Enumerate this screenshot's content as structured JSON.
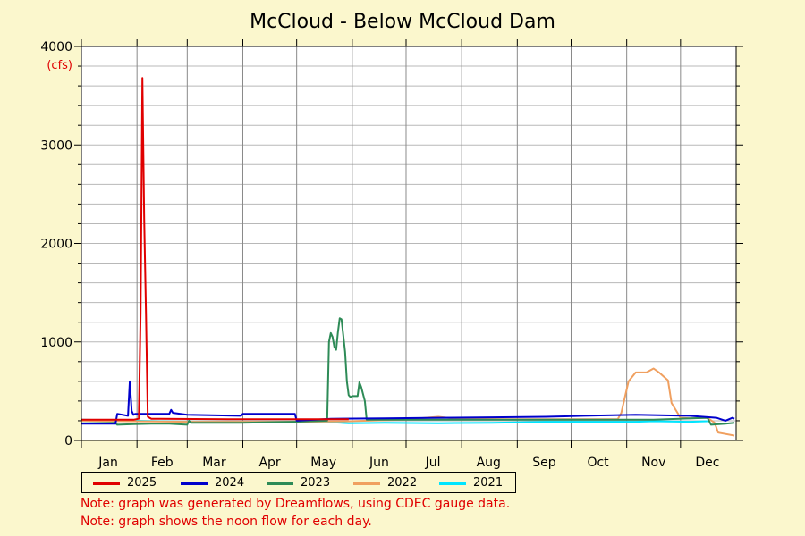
{
  "chart_data": {
    "type": "line",
    "title": "McCloud - Below McCloud Dam",
    "ylabel": "(cfs)",
    "ylim": [
      0,
      4000
    ],
    "y_ticks": [
      0,
      1000,
      2000,
      3000,
      4000
    ],
    "x_unit": "day_of_year",
    "xlim": [
      1,
      366
    ],
    "x_ticks": [
      {
        "day": 16,
        "label": "Jan"
      },
      {
        "day": 46,
        "label": "Feb"
      },
      {
        "day": 75,
        "label": "Mar"
      },
      {
        "day": 106,
        "label": "Apr"
      },
      {
        "day": 136,
        "label": "May"
      },
      {
        "day": 167,
        "label": "Jun"
      },
      {
        "day": 197,
        "label": "Jul"
      },
      {
        "day": 228,
        "label": "Aug"
      },
      {
        "day": 259,
        "label": "Sep"
      },
      {
        "day": 289,
        "label": "Oct"
      },
      {
        "day": 320,
        "label": "Nov"
      },
      {
        "day": 350,
        "label": "Dec"
      }
    ],
    "grid": true,
    "legend_position": "bottom",
    "series": [
      {
        "name": "2021",
        "color": "#00e5ff",
        "x": [
          1,
          30,
          60,
          90,
          120,
          140,
          150,
          170,
          200,
          230,
          260,
          290,
          310,
          320,
          340,
          350
        ],
        "y": [
          210,
          200,
          190,
          190,
          190,
          185,
          175,
          180,
          175,
          180,
          190,
          190,
          190,
          195,
          190,
          195
        ]
      },
      {
        "name": "2022",
        "color": "#f0a060",
        "x": [
          1,
          30,
          60,
          90,
          120,
          150,
          180,
          200,
          210,
          240,
          270,
          300,
          302,
          306,
          310,
          316,
          320,
          323,
          328,
          330,
          335,
          340,
          350,
          354,
          356,
          365
        ],
        "y": [
          200,
          195,
          190,
          190,
          190,
          195,
          210,
          240,
          220,
          215,
          215,
          215,
          280,
          600,
          690,
          690,
          730,
          690,
          610,
          380,
          230,
          225,
          230,
          180,
          80,
          50
        ]
      },
      {
        "name": "2023",
        "color": "#2e8b57",
        "x": [
          1,
          20,
          21,
          30,
          40,
          50,
          60,
          61,
          62,
          90,
          120,
          138,
          139,
          140,
          141,
          142,
          143,
          144,
          145,
          146,
          148,
          149,
          150,
          151,
          152,
          155,
          156,
          157,
          159,
          160,
          170,
          200,
          230,
          260,
          290,
          320,
          350,
          352,
          360,
          365
        ],
        "y": [
          175,
          180,
          160,
          165,
          170,
          170,
          160,
          200,
          180,
          180,
          190,
          200,
          1000,
          1090,
          1050,
          950,
          920,
          1100,
          1240,
          1230,
          900,
          600,
          460,
          440,
          450,
          450,
          590,
          540,
          400,
          210,
          210,
          210,
          210,
          210,
          210,
          210,
          230,
          160,
          170,
          180
        ]
      },
      {
        "name": "2024",
        "color": "#0000cc",
        "x": [
          1,
          20,
          21,
          27,
          28,
          29,
          30,
          31,
          35,
          50,
          51,
          52,
          60,
          90,
          91,
          120,
          121,
          140,
          170,
          200,
          230,
          260,
          281,
          310,
          340,
          355,
          360,
          364,
          365
        ],
        "y": [
          170,
          170,
          270,
          250,
          600,
          300,
          260,
          270,
          270,
          270,
          310,
          280,
          260,
          250,
          270,
          270,
          200,
          220,
          225,
          230,
          235,
          240,
          250,
          260,
          250,
          230,
          200,
          230,
          220
        ]
      },
      {
        "name": "2025",
        "color": "#e00000",
        "x": [
          1,
          30,
          33,
          34,
          35,
          36,
          37,
          38,
          40,
          45,
          90,
          120,
          140,
          150
        ],
        "y": [
          210,
          210,
          220,
          1300,
          3680,
          2250,
          1300,
          240,
          220,
          220,
          215,
          215,
          215,
          215
        ]
      }
    ]
  },
  "legend_order": [
    "2025",
    "2024",
    "2023",
    "2022",
    "2021"
  ],
  "notes": [
    "Note: graph was generated by Dreamflows, using CDEC gauge data.",
    "Note: graph shows the noon flow for each day."
  ]
}
